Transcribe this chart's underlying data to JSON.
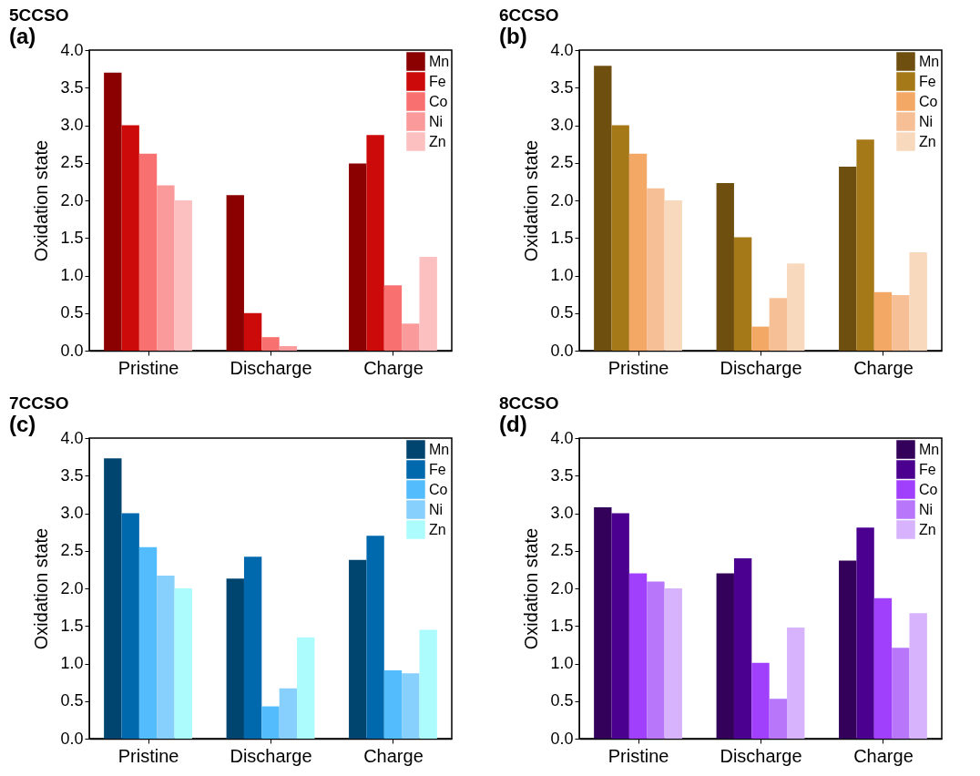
{
  "chart_data": [
    {
      "type": "bar",
      "title": "5CCSO",
      "annotations": [
        "(a)"
      ],
      "ylabel": "Oxidation state",
      "categories": [
        "Pristine",
        "Discharge",
        "Charge"
      ],
      "ylim": [
        0,
        4
      ],
      "yticks": [
        {
          "value": 0,
          "label": "0.0"
        },
        {
          "value": 0.5,
          "label": "0.5"
        },
        {
          "value": 1,
          "label": "1.0"
        },
        {
          "value": 1.5,
          "label": "1.5"
        },
        {
          "value": 2,
          "label": "2.0"
        },
        {
          "value": 2.5,
          "label": "2.5"
        },
        {
          "value": 3,
          "label": "3.0"
        },
        {
          "value": 3.5,
          "label": "3.5"
        },
        {
          "value": 4,
          "label": "4.0"
        }
      ],
      "legend": "top right",
      "series": [
        {
          "name": "Mn",
          "color": "#8b0000",
          "values": [
            3.7,
            2.07,
            2.49
          ]
        },
        {
          "name": "Fe",
          "color": "#cc0a0a",
          "values": [
            3.0,
            0.5,
            2.87
          ]
        },
        {
          "name": "Co",
          "color": "#f87070",
          "values": [
            2.62,
            0.18,
            0.87
          ]
        },
        {
          "name": "Ni",
          "color": "#fa9a9a",
          "values": [
            2.2,
            0.06,
            0.36
          ]
        },
        {
          "name": "Zn",
          "color": "#fdc0c0",
          "values": [
            2.0,
            null,
            1.25
          ]
        }
      ]
    },
    {
      "type": "bar",
      "title": "6CCSO",
      "annotations": [
        "(b)"
      ],
      "ylabel": "Oxidation state",
      "categories": [
        "Pristine",
        "Discharge",
        "Charge"
      ],
      "ylim": [
        0,
        4
      ],
      "yticks": [
        {
          "value": 0,
          "label": "0.0"
        },
        {
          "value": 0.5,
          "label": "0.5"
        },
        {
          "value": 1,
          "label": "1.0"
        },
        {
          "value": 1.5,
          "label": "1.5"
        },
        {
          "value": 2,
          "label": "2.0"
        },
        {
          "value": 2.5,
          "label": "2.5"
        },
        {
          "value": 3,
          "label": "3.0"
        },
        {
          "value": 3.5,
          "label": "3.5"
        },
        {
          "value": 4,
          "label": "4.0"
        }
      ],
      "legend": "top right",
      "series": [
        {
          "name": "Mn",
          "color": "#6f4f10",
          "values": [
            3.79,
            2.23,
            2.45
          ]
        },
        {
          "name": "Fe",
          "color": "#a57818",
          "values": [
            3.0,
            1.51,
            2.81
          ]
        },
        {
          "name": "Co",
          "color": "#f3a866",
          "values": [
            2.62,
            0.32,
            0.78
          ]
        },
        {
          "name": "Ni",
          "color": "#f6bf95",
          "values": [
            2.16,
            0.7,
            0.74
          ]
        },
        {
          "name": "Zn",
          "color": "#f9d9bd",
          "values": [
            2.0,
            1.16,
            1.31
          ]
        }
      ]
    },
    {
      "type": "bar",
      "title": "7CCSO",
      "annotations": [
        "(c)"
      ],
      "ylabel": "Oxidation state",
      "categories": [
        "Pristine",
        "Discharge",
        "Charge"
      ],
      "ylim": [
        0,
        4
      ],
      "yticks": [
        {
          "value": 0,
          "label": "0.0"
        },
        {
          "value": 0.5,
          "label": "0.5"
        },
        {
          "value": 1,
          "label": "1.0"
        },
        {
          "value": 1.5,
          "label": "1.5"
        },
        {
          "value": 2,
          "label": "2.0"
        },
        {
          "value": 2.5,
          "label": "2.5"
        },
        {
          "value": 3,
          "label": "3.0"
        },
        {
          "value": 3.5,
          "label": "3.5"
        },
        {
          "value": 4,
          "label": "4.0"
        }
      ],
      "legend": "top right",
      "series": [
        {
          "name": "Mn",
          "color": "#004570",
          "values": [
            3.73,
            2.13,
            2.38
          ]
        },
        {
          "name": "Fe",
          "color": "#0068ad",
          "values": [
            3.0,
            2.42,
            2.7
          ]
        },
        {
          "name": "Co",
          "color": "#52bcfd",
          "values": [
            2.55,
            0.43,
            0.91
          ]
        },
        {
          "name": "Ni",
          "color": "#87d0fd",
          "values": [
            2.17,
            0.67,
            0.87
          ]
        },
        {
          "name": "Zn",
          "color": "#adfcfd",
          "values": [
            2.0,
            1.35,
            1.45
          ]
        }
      ]
    },
    {
      "type": "bar",
      "title": "8CCSO",
      "annotations": [
        "(d)"
      ],
      "ylabel": "Oxidation state",
      "categories": [
        "Pristine",
        "Discharge",
        "Charge"
      ],
      "ylim": [
        0,
        4
      ],
      "yticks": [
        {
          "value": 0,
          "label": "0.0"
        },
        {
          "value": 0.5,
          "label": "0.5"
        },
        {
          "value": 1,
          "label": "1.0"
        },
        {
          "value": 1.5,
          "label": "1.5"
        },
        {
          "value": 2,
          "label": "2.0"
        },
        {
          "value": 2.5,
          "label": "2.5"
        },
        {
          "value": 3,
          "label": "3.0"
        },
        {
          "value": 3.5,
          "label": "3.5"
        },
        {
          "value": 4,
          "label": "4.0"
        }
      ],
      "legend": "top right",
      "series": [
        {
          "name": "Mn",
          "color": "#33005a",
          "values": [
            3.08,
            2.2,
            2.37
          ]
        },
        {
          "name": "Fe",
          "color": "#4b0090",
          "values": [
            3.0,
            2.4,
            2.81
          ]
        },
        {
          "name": "Co",
          "color": "#a040fd",
          "values": [
            2.2,
            1.01,
            1.87
          ]
        },
        {
          "name": "Ni",
          "color": "#b877fa",
          "values": [
            2.09,
            0.53,
            1.21
          ]
        },
        {
          "name": "Zn",
          "color": "#d7b2fd",
          "values": [
            2.0,
            1.48,
            1.67
          ]
        }
      ]
    }
  ]
}
